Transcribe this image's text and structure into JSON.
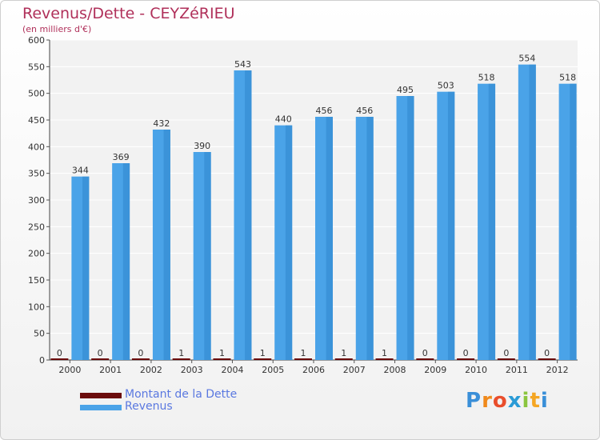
{
  "chart_data": {
    "type": "bar",
    "title": "Revenus/Dette - CEYZéRIEU",
    "subtitle": "(en milliers d'€)",
    "categories": [
      "2000",
      "2001",
      "2002",
      "2003",
      "2004",
      "2005",
      "2006",
      "2007",
      "2008",
      "2009",
      "2010",
      "2011",
      "2012"
    ],
    "series": [
      {
        "name": "Montant de la Dette",
        "color": "#6b0c0c",
        "values": [
          0,
          0,
          0,
          1,
          1,
          1,
          1,
          1,
          1,
          0,
          0,
          0,
          0
        ]
      },
      {
        "name": "Revenus",
        "color": "#4aa3e8",
        "values": [
          344,
          369,
          432,
          390,
          543,
          440,
          456,
          456,
          495,
          503,
          518,
          554,
          518
        ]
      }
    ],
    "ylim": [
      0,
      600
    ],
    "yticks": [
      0,
      50,
      100,
      150,
      200,
      250,
      300,
      350,
      400,
      450,
      500,
      550,
      600
    ],
    "grid": true,
    "legend": "bottom-left"
  },
  "legend": {
    "debt_label": "Montant de la Dette",
    "revenue_label": "Revenus",
    "debt_color": "#6b0c0c",
    "revenue_color": "#4aa3e8"
  },
  "logo": {
    "letters": [
      "P",
      "r",
      "o",
      "x",
      "i",
      "t",
      "i"
    ],
    "colors": [
      "#3a8fd8",
      "#f08a1c",
      "#e94e2c",
      "#2a9bd6",
      "#8bc53f",
      "#f5a623",
      "#3a8fd8"
    ]
  }
}
